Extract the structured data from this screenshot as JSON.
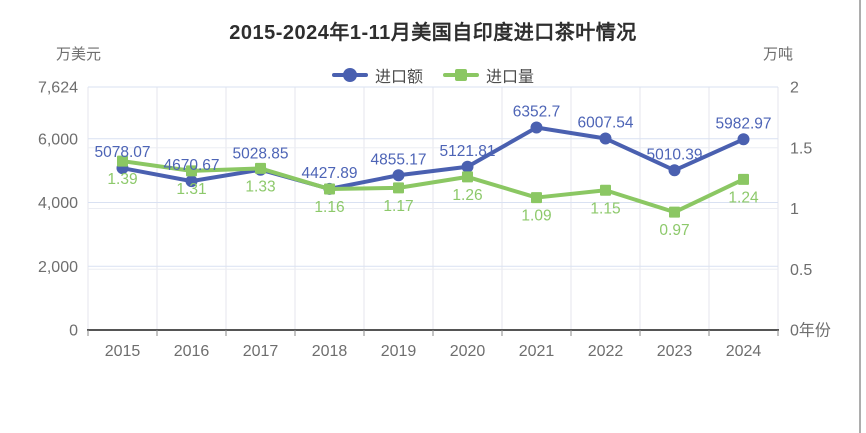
{
  "title": "2015-2024年1-11月美国自印度进口茶叶情况",
  "legend": {
    "items": [
      {
        "label": "进口额",
        "marker": "circle",
        "color": "#4a60b0"
      },
      {
        "label": "进口量",
        "marker": "square",
        "color": "#8bc763"
      }
    ]
  },
  "axes": {
    "left": {
      "title": "万美元",
      "tick_labels": [
        "7,624",
        "6,000",
        "4,000",
        "2,000",
        "0"
      ],
      "tick_values": [
        7624,
        6000,
        4000,
        2000,
        0
      ],
      "max": 7624
    },
    "right": {
      "title": "万吨",
      "tick_labels": [
        "2",
        "1.5",
        "1",
        "0.5",
        "0年份"
      ],
      "tick_values": [
        2,
        1.5,
        1,
        0.5,
        0
      ],
      "max": 2
    },
    "x": {
      "name": "年份",
      "categories": [
        "2015",
        "2016",
        "2017",
        "2018",
        "2019",
        "2020",
        "2021",
        "2022",
        "2023",
        "2024"
      ]
    }
  },
  "chart_data": {
    "type": "line",
    "title": "2015-2024年1-11月美国自印度进口茶叶情况",
    "categories": [
      2015,
      2016,
      2017,
      2018,
      2019,
      2020,
      2021,
      2022,
      2023,
      2024
    ],
    "xlabel": "年份",
    "grid": true,
    "legend_position": "top",
    "left_axis": {
      "label": "万美元",
      "ylim": [
        0,
        7624
      ],
      "ticks": [
        0,
        2000,
        4000,
        6000,
        7624
      ]
    },
    "right_axis": {
      "label": "万吨",
      "ylim": [
        0,
        2
      ],
      "ticks": [
        0,
        0.5,
        1,
        1.5,
        2
      ]
    },
    "series": [
      {
        "name": "进口额",
        "yaxis": "left",
        "unit": "万美元",
        "color": "#4a60b0",
        "label_color": "#4d64b6",
        "marker": "circle",
        "values": [
          5078.07,
          4670.67,
          5028.85,
          4427.89,
          4855.17,
          5121.81,
          6352.7,
          6007.54,
          5010.39,
          5982.97
        ],
        "labels": [
          "5078.07",
          "4670.67",
          "5028.85",
          "4427.89",
          "4855.17",
          "5121.81",
          "6352.7",
          "6007.54",
          "5010.39",
          "5982.97"
        ]
      },
      {
        "name": "进口量",
        "yaxis": "right",
        "unit": "万吨",
        "color": "#8bc763",
        "label_color": "#8dc96b",
        "marker": "square",
        "values": [
          1.39,
          1.31,
          1.33,
          1.16,
          1.17,
          1.26,
          1.09,
          1.15,
          0.97,
          1.24
        ],
        "labels": [
          "1.39",
          "1.31",
          "1.33",
          "1.16",
          "1.17",
          "1.26",
          "1.09",
          "1.15",
          "0.97",
          "1.24"
        ]
      }
    ]
  },
  "colors": {
    "title_text": "#2e2e2e",
    "axis_text": "#6e6e6e",
    "legend_text": "#4c4c4c",
    "grid_left": "#d9e1f2",
    "grid_right": "#ebedf3",
    "grid_vertical": "#e4e6ec",
    "axis_line": "#555555",
    "tick_mark": "#8a8a8a",
    "page_edge": "#adadad"
  }
}
